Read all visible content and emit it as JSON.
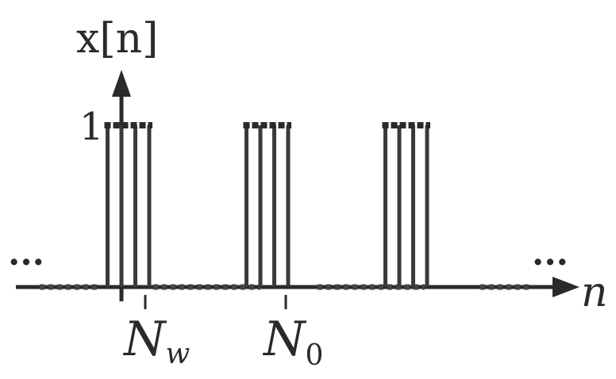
{
  "labels": {
    "y_axis": "x[n]",
    "x_axis": "n",
    "amplitude": "1",
    "tick_nw": "N",
    "tick_nw_sub": "w",
    "tick_n0": "N",
    "tick_n0_sub": "0",
    "ellipsis_left": "...",
    "ellipsis_right": "..."
  },
  "chart_data": {
    "type": "stem",
    "signal": "x[n]",
    "period_label": "N0",
    "width_label": "Nw",
    "amplitude": 1,
    "pulses": [
      {
        "start": -1,
        "end": 2
      },
      {
        "start": 9,
        "end": 12
      },
      {
        "start": 19,
        "end": 22
      }
    ],
    "x_range": [
      -6,
      28
    ],
    "ticks": [
      {
        "n": 1,
        "label": "Nw"
      },
      {
        "n": 10,
        "label": "N0"
      }
    ],
    "periodic": true
  }
}
